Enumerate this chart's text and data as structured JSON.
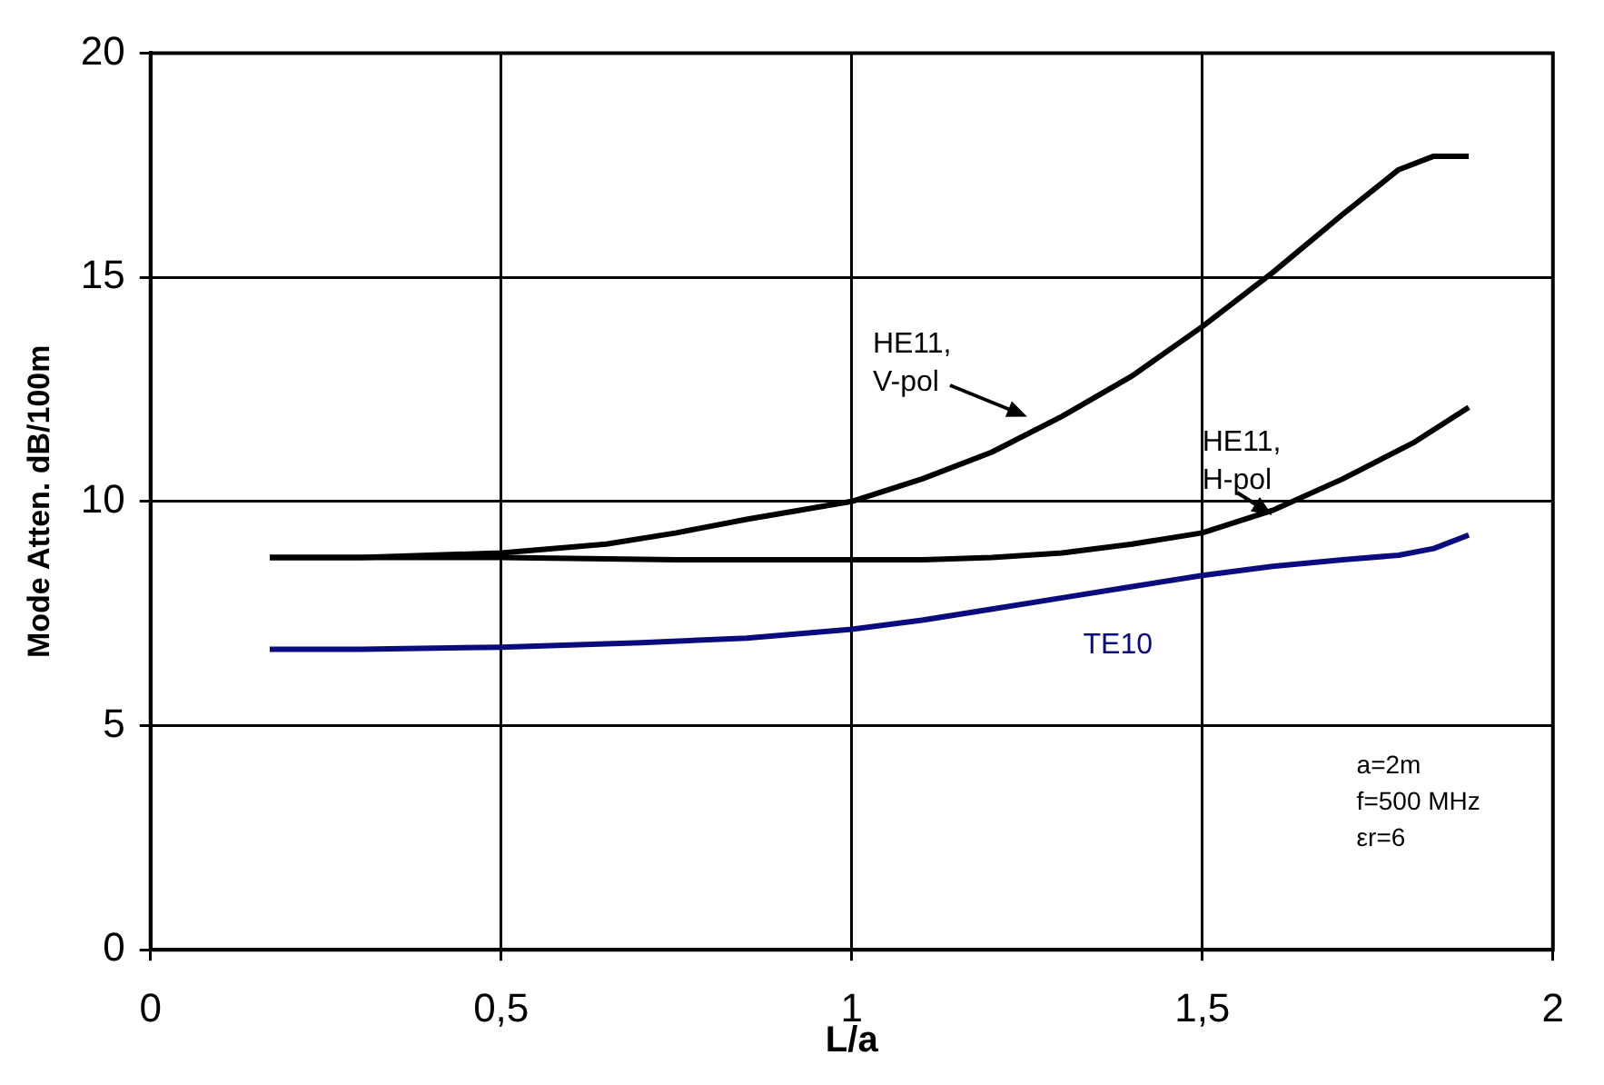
{
  "chart_data": {
    "type": "line",
    "xlabel": "L/a",
    "ylabel": "Mode Atten. dB/100m",
    "xlim": [
      0,
      2
    ],
    "xticks": [
      0,
      {
        "value": 0.5,
        "label": "0,5"
      },
      1,
      {
        "value": 1.5,
        "label": "1,5"
      },
      2
    ],
    "ylim": [
      0,
      20
    ],
    "yticks": [
      0,
      5,
      10,
      15,
      20
    ],
    "grid": true,
    "legend": false,
    "marker": "none",
    "line_style": "solid",
    "series": [
      {
        "name": "HE11, V-pol",
        "color": "#000000",
        "x": [
          0.17,
          0.3,
          0.5,
          0.65,
          0.75,
          0.85,
          1.0,
          1.1,
          1.2,
          1.3,
          1.4,
          1.5,
          1.6,
          1.7,
          1.78,
          1.83,
          1.88
        ],
        "values": [
          8.75,
          8.75,
          8.85,
          9.05,
          9.3,
          9.6,
          10.0,
          10.5,
          11.1,
          11.9,
          12.8,
          13.9,
          15.1,
          16.4,
          17.4,
          17.7,
          17.7
        ]
      },
      {
        "name": "HE11, H-pol",
        "color": "#000000",
        "x": [
          0.17,
          0.3,
          0.5,
          0.75,
          1.0,
          1.1,
          1.2,
          1.3,
          1.4,
          1.5,
          1.6,
          1.7,
          1.8,
          1.88
        ],
        "values": [
          8.75,
          8.75,
          8.75,
          8.7,
          8.7,
          8.7,
          8.75,
          8.85,
          9.05,
          9.3,
          9.8,
          10.5,
          11.3,
          12.1
        ]
      },
      {
        "name": "TE10",
        "color": "#0b0b80",
        "x": [
          0.17,
          0.3,
          0.5,
          0.7,
          0.85,
          1.0,
          1.1,
          1.2,
          1.3,
          1.4,
          1.5,
          1.6,
          1.7,
          1.78,
          1.83,
          1.88
        ],
        "values": [
          6.7,
          6.7,
          6.75,
          6.85,
          6.95,
          7.15,
          7.35,
          7.6,
          7.85,
          8.1,
          8.35,
          8.55,
          8.7,
          8.8,
          8.95,
          9.25
        ]
      }
    ],
    "annotations": [
      "a=2m",
      "f=500 MHz",
      "εr=6"
    ]
  }
}
